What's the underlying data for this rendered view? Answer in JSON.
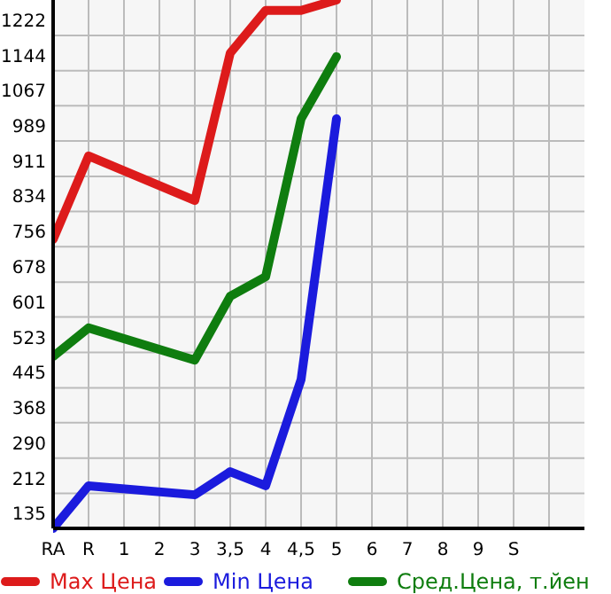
{
  "chart_data": {
    "type": "line",
    "categories": [
      "RA",
      "R",
      "1",
      "2",
      "3",
      "3,5",
      "4",
      "4,5",
      "5",
      "6",
      "7",
      "8",
      "9",
      "S"
    ],
    "series": [
      {
        "name": "Max Цена",
        "color": "#dd1b1b",
        "values": [
          772,
          956,
          null,
          null,
          858,
          1183,
          1277,
          1277,
          1300,
          null,
          null,
          null,
          null,
          null
        ]
      },
      {
        "name": "Min Цена",
        "color": "#1b1bdd",
        "values": [
          135,
          229,
          null,
          null,
          209,
          260,
          229,
          463,
          1038,
          null,
          null,
          null,
          null,
          null
        ]
      },
      {
        "name": "Сред.Цена, т.йен",
        "color": "#0f7d0f",
        "values": [
          514,
          577,
          null,
          null,
          506,
          647,
          690,
          1038,
          1175,
          null,
          null,
          null,
          null,
          null
        ]
      }
    ],
    "ylim": [
      135,
      1300
    ],
    "yticks": [
      135,
      212,
      290,
      368,
      445,
      523,
      601,
      678,
      756,
      834,
      911,
      989,
      1067,
      1144,
      1222
    ],
    "grid": true,
    "legend": "bottom",
    "marker": "none",
    "line_style": "solid"
  }
}
